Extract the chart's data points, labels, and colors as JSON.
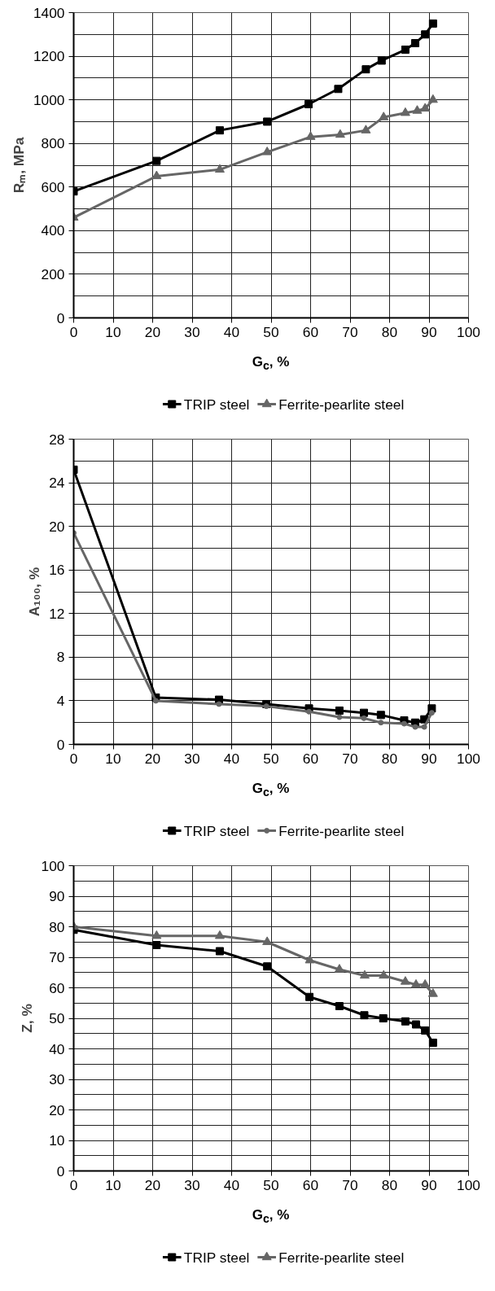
{
  "chart_data": [
    {
      "type": "line",
      "xlabel": "G$_{c}$, %",
      "ylabel": "Rₘ, MPa",
      "xlim": [
        0,
        100
      ],
      "ylim": [
        0,
        1400
      ],
      "xticks": [
        0,
        10,
        20,
        30,
        40,
        50,
        60,
        70,
        80,
        90,
        100
      ],
      "yticks": [
        0,
        200,
        400,
        600,
        800,
        1000,
        1200,
        1400
      ],
      "grid": true,
      "legend": "bottom",
      "line_style": "solid",
      "series": [
        {
          "name": "TRIP steel",
          "color": "#000000",
          "marker": "square",
          "x": [
            0,
            21,
            37,
            49,
            59.5,
            67,
            74,
            78,
            84,
            86.5,
            89,
            91
          ],
          "values": [
            580,
            720,
            860,
            900,
            980,
            1050,
            1140,
            1180,
            1230,
            1260,
            1300,
            1350
          ]
        },
        {
          "name": "Ferrite-pearlite steel",
          "color": "#666666",
          "marker": "triangle",
          "x": [
            0,
            21,
            37,
            49,
            60,
            67.5,
            74,
            78.5,
            84,
            87,
            89,
            91
          ],
          "values": [
            460,
            650,
            680,
            760,
            830,
            840,
            860,
            920,
            940,
            950,
            960,
            1000
          ]
        }
      ]
    },
    {
      "type": "line",
      "xlabel": "G$_{c}$, %",
      "ylabel": "A₁₀₀, %",
      "xlim": [
        0,
        100
      ],
      "ylim": [
        0,
        28
      ],
      "xticks": [
        0,
        10,
        20,
        30,
        40,
        50,
        60,
        70,
        80,
        90,
        100
      ],
      "yticks": [
        0,
        4,
        8,
        12,
        16,
        20,
        24,
        28
      ],
      "grid": true,
      "legend": "bottom",
      "line_style": "solid",
      "series": [
        {
          "name": "TRIP steel",
          "color": "#000000",
          "marker": "square",
          "x": [
            0,
            20.8,
            36.8,
            48.8,
            59.6,
            67.3,
            73.5,
            77.8,
            83.7,
            86.5,
            88.8,
            90.7
          ],
          "values": [
            25.2,
            4.3,
            4.1,
            3.7,
            3.3,
            3.1,
            2.9,
            2.7,
            2.2,
            2.0,
            2.3,
            3.3
          ]
        },
        {
          "name": "Ferrite-pearlite steel",
          "color": "#666666",
          "marker": "circle",
          "x": [
            0,
            20.8,
            36.8,
            48.8,
            59.6,
            67.3,
            73.5,
            77.8,
            83.7,
            86.5,
            88.8,
            90.7
          ],
          "values": [
            19.4,
            4.0,
            3.7,
            3.5,
            3.0,
            2.5,
            2.4,
            2.0,
            1.9,
            1.6,
            1.6,
            2.9
          ]
        }
      ]
    },
    {
      "type": "line",
      "xlabel": "G$_{c}$, %",
      "ylabel": "Z, %",
      "xlim": [
        0,
        100
      ],
      "ylim": [
        0,
        100
      ],
      "xticks": [
        0,
        10,
        20,
        30,
        40,
        50,
        60,
        70,
        80,
        90,
        100
      ],
      "yticks": [
        0,
        10,
        20,
        30,
        40,
        50,
        60,
        70,
        80,
        90,
        100
      ],
      "grid": true,
      "legend": "bottom",
      "line_style": "solid",
      "series": [
        {
          "name": "TRIP steel",
          "color": "#000000",
          "marker": "square",
          "x": [
            0,
            21,
            37,
            49,
            59.7,
            67.3,
            73.6,
            78.4,
            84,
            86.7,
            89,
            91
          ],
          "values": [
            79,
            74,
            72,
            67,
            57,
            54,
            51,
            50,
            49,
            48,
            46,
            42
          ]
        },
        {
          "name": "Ferrite-pearlite steel",
          "color": "#666666",
          "marker": "triangle",
          "x": [
            0,
            21,
            37,
            49,
            59.8,
            67.3,
            73.7,
            78.5,
            84,
            86.7,
            89,
            91
          ],
          "values": [
            80,
            77,
            77,
            75,
            69,
            66,
            64,
            64,
            62,
            61,
            61,
            58
          ]
        }
      ]
    }
  ]
}
